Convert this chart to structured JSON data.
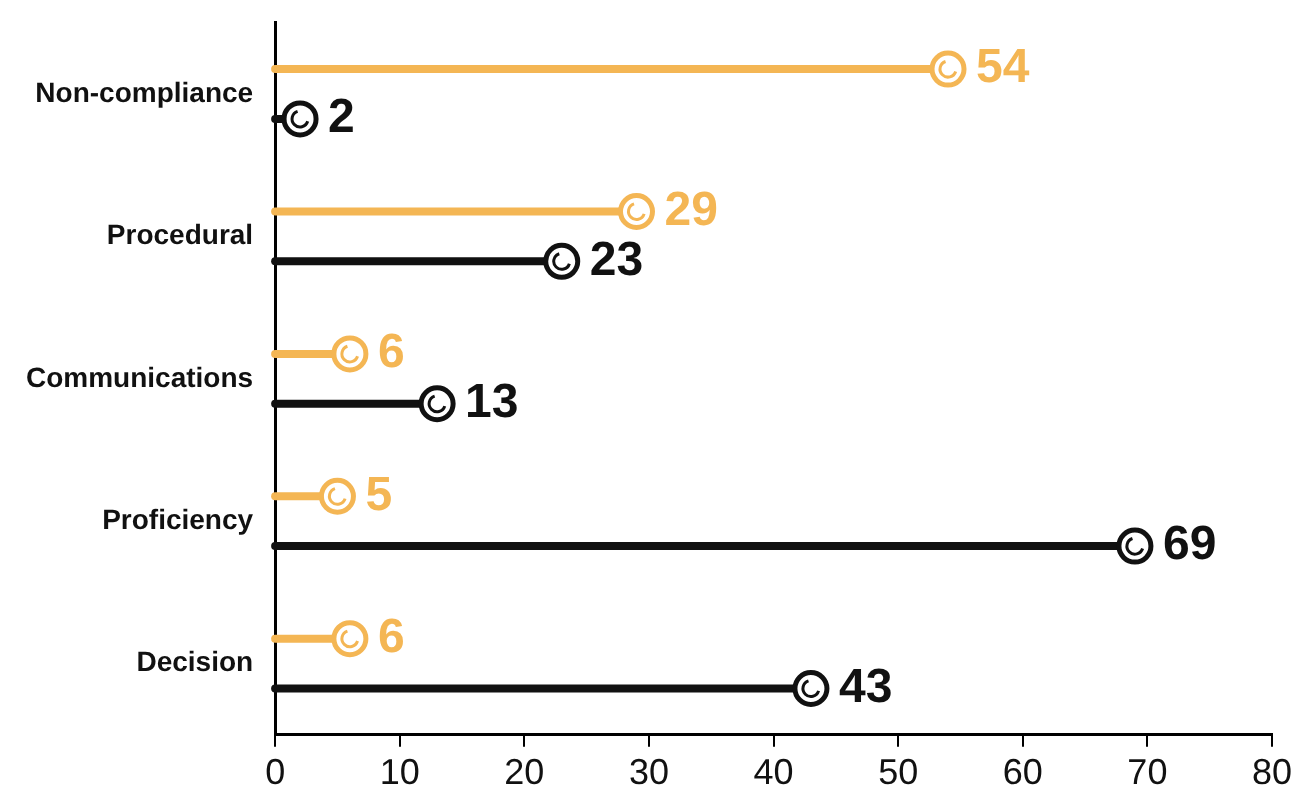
{
  "chart_data": {
    "type": "lollipop",
    "orientation": "horizontal",
    "categories": [
      "Non-compliance",
      "Procedural",
      "Communications",
      "Proficiency",
      "Decision"
    ],
    "series": [
      {
        "color": "#f4b654",
        "values": [
          54,
          29,
          6,
          5,
          6
        ]
      },
      {
        "color": "#111111",
        "values": [
          2,
          23,
          13,
          69,
          43
        ]
      }
    ],
    "xlim": [
      0,
      80
    ],
    "xticks": [
      0,
      10,
      20,
      30,
      40,
      50,
      60,
      70,
      80
    ],
    "marker": "circle",
    "data_labels": true
  }
}
